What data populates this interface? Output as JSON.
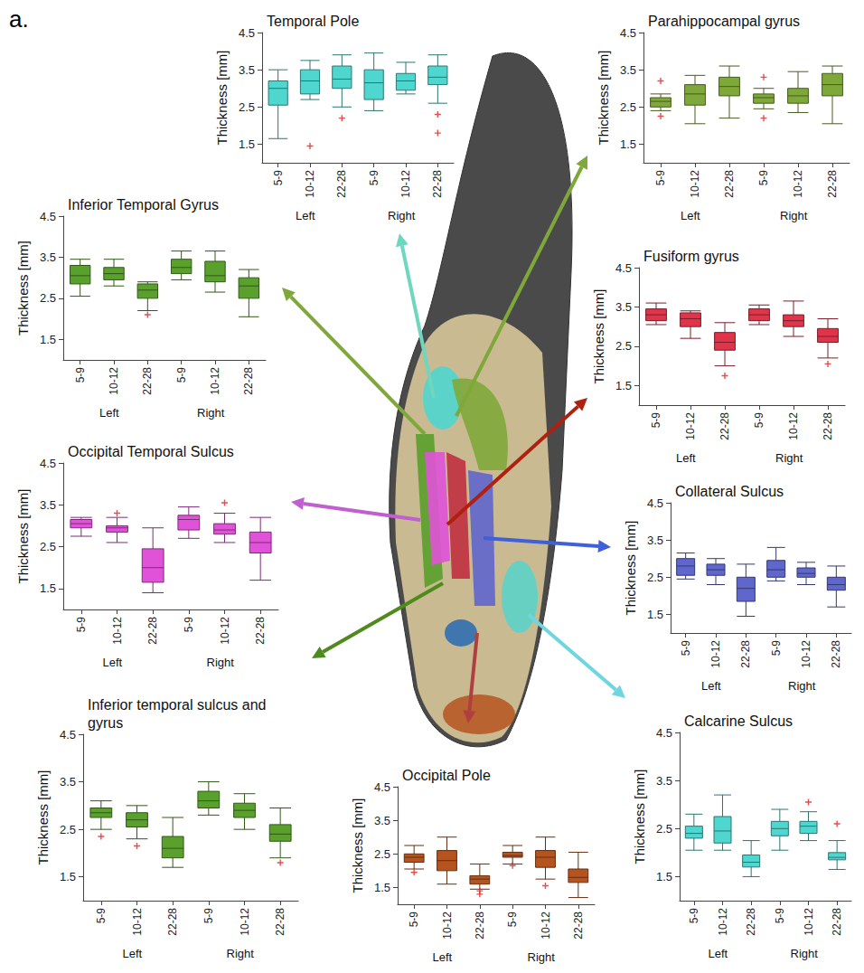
{
  "panel_label": "a.",
  "chart_data": [
    {
      "type": "boxplot",
      "title": "Temporal Pole",
      "y_label": "Thickness [mm]",
      "color": "#4fd6cf",
      "marker": "plus",
      "categories": [
        "5-9",
        "10-12",
        "22-28",
        "5-9",
        "10-12",
        "22-28"
      ],
      "groups": [
        "Left",
        "Right"
      ],
      "boxes": [
        [
          1.65,
          2.55,
          3.0,
          3.2,
          3.5
        ],
        [
          2.7,
          2.85,
          3.2,
          3.5,
          3.75
        ],
        [
          2.5,
          3.0,
          3.25,
          3.6,
          3.9
        ],
        [
          2.4,
          2.7,
          3.15,
          3.5,
          3.95
        ],
        [
          2.85,
          2.95,
          3.2,
          3.4,
          3.7
        ],
        [
          2.6,
          3.1,
          3.3,
          3.6,
          3.9
        ]
      ],
      "outliers": [
        [
          1,
          1.45
        ],
        [
          2,
          2.2
        ],
        [
          5,
          2.3
        ],
        [
          5,
          1.8
        ]
      ],
      "ylim": [
        1,
        4.5
      ],
      "yticks": [
        1.5,
        2.5,
        3.5,
        4.5
      ],
      "grid": false
    },
    {
      "type": "boxplot",
      "title": "Parahippocampal gyrus",
      "y_label": "Thickness [mm]",
      "color": "#7fa83a",
      "marker": "plus",
      "categories": [
        "5-9",
        "10-12",
        "22-28",
        "5-9",
        "10-12",
        "22-28"
      ],
      "groups": [
        "Left",
        "Right"
      ],
      "boxes": [
        [
          2.4,
          2.5,
          2.65,
          2.75,
          2.85
        ],
        [
          2.05,
          2.55,
          2.85,
          3.1,
          3.35
        ],
        [
          2.2,
          2.8,
          3.05,
          3.3,
          3.6
        ],
        [
          2.45,
          2.6,
          2.75,
          2.85,
          3.0
        ],
        [
          2.35,
          2.6,
          2.8,
          3.0,
          3.45
        ],
        [
          2.05,
          2.8,
          3.1,
          3.4,
          3.6
        ]
      ],
      "outliers": [
        [
          0,
          3.2
        ],
        [
          0,
          2.25
        ],
        [
          3,
          3.3
        ],
        [
          3,
          2.2
        ]
      ],
      "ylim": [
        1,
        4.5
      ],
      "yticks": [
        1.5,
        2.5,
        3.5,
        4.5
      ],
      "grid": false
    },
    {
      "type": "boxplot",
      "title": "Inferior Temporal Gyrus",
      "y_label": "Thickness [mm]",
      "color": "#5aa02c",
      "marker": "plus",
      "categories": [
        "5-9",
        "10-12",
        "22-28",
        "5-9",
        "10-12",
        "22-28"
      ],
      "groups": [
        "Left",
        "Right"
      ],
      "boxes": [
        [
          2.55,
          2.85,
          3.05,
          3.3,
          3.45
        ],
        [
          2.8,
          2.95,
          3.1,
          3.25,
          3.45
        ],
        [
          2.2,
          2.5,
          2.7,
          2.85,
          2.9
        ],
        [
          2.95,
          3.1,
          3.25,
          3.45,
          3.65
        ],
        [
          2.65,
          2.9,
          3.05,
          3.4,
          3.65
        ],
        [
          2.05,
          2.5,
          2.8,
          3.0,
          3.2
        ]
      ],
      "outliers": [
        [
          2,
          2.1
        ]
      ],
      "ylim": [
        1,
        4.5
      ],
      "yticks": [
        1.5,
        2.5,
        3.5,
        4.5
      ],
      "grid": false
    },
    {
      "type": "boxplot",
      "title": "Fusiform gyrus",
      "y_label": "Thickness [mm]",
      "color": "#e0344b",
      "marker": "plus",
      "categories": [
        "5-9",
        "10-12",
        "22-28",
        "5-9",
        "10-12",
        "22-28"
      ],
      "groups": [
        "Left",
        "Right"
      ],
      "boxes": [
        [
          3.05,
          3.15,
          3.3,
          3.45,
          3.6
        ],
        [
          2.7,
          3.0,
          3.2,
          3.35,
          3.4
        ],
        [
          2.0,
          2.4,
          2.6,
          2.85,
          3.1
        ],
        [
          3.05,
          3.15,
          3.3,
          3.45,
          3.55
        ],
        [
          2.75,
          3.0,
          3.15,
          3.3,
          3.65
        ],
        [
          2.2,
          2.6,
          2.75,
          2.95,
          3.2
        ]
      ],
      "outliers": [
        [
          2,
          1.75
        ],
        [
          5,
          2.05
        ]
      ],
      "ylim": [
        1,
        4.5
      ],
      "yticks": [
        1.5,
        2.5,
        3.5,
        4.5
      ],
      "grid": false
    },
    {
      "type": "boxplot",
      "title": "Occipital Temporal Sulcus",
      "y_label": "Thickness [mm]",
      "color": "#e052d8",
      "marker": "plus",
      "categories": [
        "5-9",
        "10-12",
        "22-28",
        "5-9",
        "10-12",
        "22-28"
      ],
      "groups": [
        "Left",
        "Right"
      ],
      "boxes": [
        [
          2.75,
          2.95,
          3.05,
          3.15,
          3.2
        ],
        [
          2.6,
          2.85,
          2.95,
          3.0,
          3.2
        ],
        [
          1.4,
          1.65,
          2.0,
          2.45,
          2.95
        ],
        [
          2.7,
          2.9,
          3.15,
          3.25,
          3.45
        ],
        [
          2.6,
          2.8,
          2.9,
          3.05,
          3.3
        ],
        [
          1.7,
          2.35,
          2.6,
          2.85,
          3.2
        ]
      ],
      "outliers": [
        [
          1,
          3.3
        ],
        [
          4,
          3.55
        ]
      ],
      "ylim": [
        1,
        4.5
      ],
      "yticks": [
        1.5,
        2.5,
        3.5,
        4.5
      ],
      "grid": false
    },
    {
      "type": "boxplot",
      "title": "Collateral Sulcus",
      "y_label": "Thickness [mm]",
      "color": "#5f66cc",
      "marker": "plus",
      "categories": [
        "5-9",
        "10-12",
        "22-28",
        "5-9",
        "10-12",
        "22-28"
      ],
      "groups": [
        "Left",
        "Right"
      ],
      "boxes": [
        [
          2.45,
          2.55,
          2.8,
          3.0,
          3.15
        ],
        [
          2.3,
          2.55,
          2.7,
          2.85,
          3.0
        ],
        [
          1.45,
          1.85,
          2.2,
          2.5,
          2.85
        ],
        [
          2.4,
          2.5,
          2.7,
          2.95,
          3.3
        ],
        [
          2.3,
          2.5,
          2.6,
          2.75,
          2.9
        ],
        [
          1.7,
          2.15,
          2.3,
          2.5,
          2.8
        ]
      ],
      "outliers": [],
      "ylim": [
        1,
        4.5
      ],
      "yticks": [
        1.5,
        2.5,
        3.5,
        4.5
      ],
      "grid": false
    },
    {
      "type": "boxplot",
      "title": "Inferior temporal sulcus and gyrus",
      "y_label": "Thickness [mm]",
      "color": "#5aa02c",
      "marker": "plus",
      "categories": [
        "5-9",
        "10-12",
        "22-28",
        "5-9",
        "10-12",
        "22-28"
      ],
      "groups": [
        "Left",
        "Right"
      ],
      "boxes": [
        [
          2.5,
          2.75,
          2.85,
          2.95,
          3.1
        ],
        [
          2.3,
          2.55,
          2.7,
          2.85,
          3.0
        ],
        [
          1.7,
          1.9,
          2.1,
          2.35,
          2.75
        ],
        [
          2.8,
          2.95,
          3.1,
          3.3,
          3.5
        ],
        [
          2.5,
          2.75,
          2.9,
          3.05,
          3.25
        ],
        [
          1.9,
          2.25,
          2.4,
          2.6,
          2.95
        ]
      ],
      "outliers": [
        [
          0,
          2.35
        ],
        [
          1,
          2.15
        ],
        [
          5,
          1.8
        ]
      ],
      "ylim": [
        1,
        4.5
      ],
      "yticks": [
        1.5,
        2.5,
        3.5,
        4.5
      ],
      "grid": false
    },
    {
      "type": "boxplot",
      "title": "Occipital Pole",
      "y_label": "Thickness [mm]",
      "color": "#b5541f",
      "marker": "plus",
      "categories": [
        "5-9",
        "10-12",
        "22-28",
        "5-9",
        "10-12",
        "22-28"
      ],
      "groups": [
        "Left",
        "Right"
      ],
      "boxes": [
        [
          2.05,
          2.25,
          2.4,
          2.5,
          2.75
        ],
        [
          1.6,
          2.0,
          2.3,
          2.6,
          3.0
        ],
        [
          1.45,
          1.6,
          1.75,
          1.85,
          2.2
        ],
        [
          2.2,
          2.4,
          2.45,
          2.55,
          2.75
        ],
        [
          1.75,
          2.1,
          2.4,
          2.6,
          3.0
        ],
        [
          1.2,
          1.65,
          1.8,
          2.05,
          2.55
        ]
      ],
      "outliers": [
        [
          0,
          1.95
        ],
        [
          2,
          1.4
        ],
        [
          2,
          1.3
        ],
        [
          3,
          2.15
        ],
        [
          4,
          1.55
        ]
      ],
      "ylim": [
        1,
        4.5
      ],
      "yticks": [
        1.5,
        2.5,
        3.5,
        4.5
      ],
      "grid": false
    },
    {
      "type": "boxplot",
      "title": "Calcarine Sulcus",
      "y_label": "Thickness [mm]",
      "color": "#4fd6cf",
      "marker": "plus",
      "categories": [
        "5-9",
        "10-12",
        "22-28",
        "5-9",
        "10-12",
        "22-28"
      ],
      "groups": [
        "Left",
        "Right"
      ],
      "boxes": [
        [
          2.05,
          2.3,
          2.4,
          2.55,
          2.8
        ],
        [
          2.05,
          2.2,
          2.45,
          2.75,
          3.2
        ],
        [
          1.5,
          1.7,
          1.8,
          1.95,
          2.25
        ],
        [
          2.05,
          2.35,
          2.5,
          2.65,
          2.9
        ],
        [
          2.25,
          2.4,
          2.55,
          2.65,
          2.85
        ],
        [
          1.65,
          1.85,
          1.9,
          2.0,
          2.25
        ]
      ],
      "outliers": [
        [
          4,
          3.05
        ],
        [
          5,
          2.6
        ]
      ],
      "ylim": [
        1,
        4.5
      ],
      "yticks": [
        1.5,
        2.5,
        3.5,
        4.5
      ],
      "grid": false
    }
  ]
}
